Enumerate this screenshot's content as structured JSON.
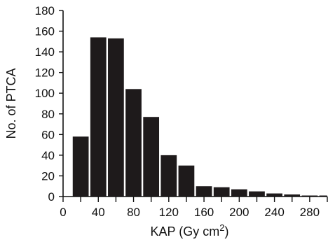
{
  "chart_data": {
    "type": "bar",
    "title": "",
    "xlabel": {
      "base": "KAP (Gy cm",
      "superscript": "2",
      "suffix": ")"
    },
    "ylabel": "No. of PTCA",
    "xlim": [
      0,
      300
    ],
    "ylim": [
      0,
      180
    ],
    "bin_width": 20,
    "x_ticks": [
      0,
      40,
      80,
      120,
      160,
      200,
      240,
      280
    ],
    "y_ticks": [
      0,
      20,
      40,
      60,
      80,
      100,
      120,
      140,
      160,
      180
    ],
    "bins": [
      {
        "start": 10,
        "end": 30,
        "value": 58
      },
      {
        "start": 30,
        "end": 50,
        "value": 154
      },
      {
        "start": 50,
        "end": 70,
        "value": 153
      },
      {
        "start": 70,
        "end": 90,
        "value": 104
      },
      {
        "start": 90,
        "end": 110,
        "value": 77
      },
      {
        "start": 110,
        "end": 130,
        "value": 40
      },
      {
        "start": 130,
        "end": 150,
        "value": 30
      },
      {
        "start": 150,
        "end": 170,
        "value": 10
      },
      {
        "start": 170,
        "end": 190,
        "value": 9
      },
      {
        "start": 190,
        "end": 210,
        "value": 7
      },
      {
        "start": 210,
        "end": 230,
        "value": 5
      },
      {
        "start": 230,
        "end": 250,
        "value": 3
      },
      {
        "start": 250,
        "end": 270,
        "value": 2
      },
      {
        "start": 270,
        "end": 290,
        "value": 1
      },
      {
        "start": 290,
        "end": 310,
        "value": 1
      }
    ],
    "bar_color": "#1e1a1b",
    "grid": false
  }
}
